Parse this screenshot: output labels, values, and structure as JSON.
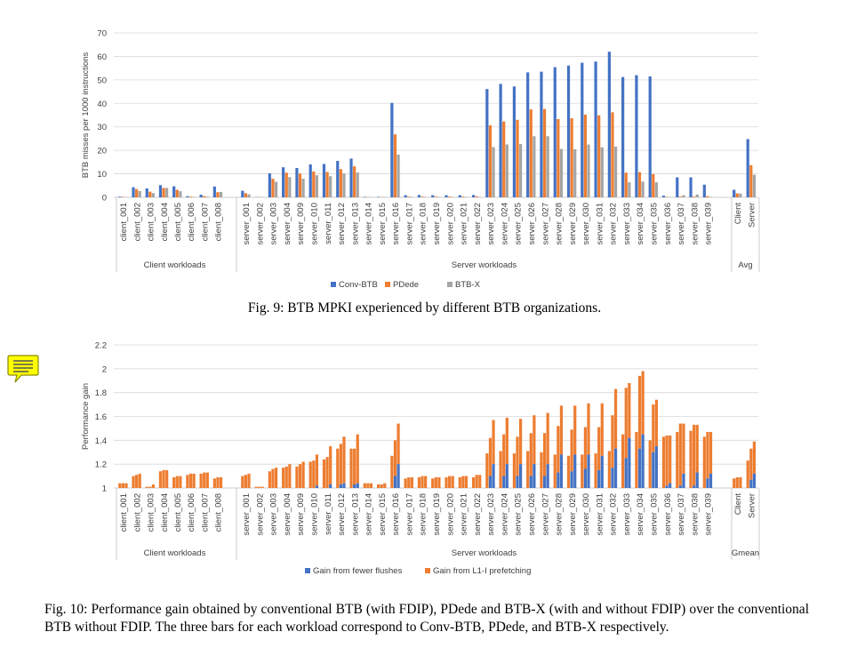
{
  "colors": {
    "conv": "#4472C4",
    "pdede": "#ED7D31",
    "btbx": "#A5A5A5",
    "grid": "#D9D9D9",
    "axis": "#BFBFBF",
    "text": "#404040",
    "note": "#FFFF00"
  },
  "icons": {
    "note": "sticky-note-icon"
  },
  "captions": {
    "fig9": "Fig. 9: BTB MPKI experienced by different BTB organizations.",
    "fig10": "Fig. 10: Performance gain obtained by conventional BTB (with FDIP), PDede and BTB-X (with and without FDIP) over the conventional BTB without FDIP. The three bars for each workload correspond to Conv-BTB, PDede, and BTB-X respectively."
  },
  "chart_data": [
    {
      "type": "bar",
      "ylabel": "BTB misses per 1000 instructions",
      "ylim": [
        0,
        70
      ],
      "yticks": [
        0,
        10,
        20,
        30,
        40,
        50,
        60,
        70
      ],
      "grid": true,
      "legend_position": "bottom",
      "categories": [
        "client_001",
        "client_002",
        "client_003",
        "client_004",
        "client_005",
        "client_006",
        "client_007",
        "client_008",
        "server_001",
        "server_002",
        "server_003",
        "server_004",
        "server_009",
        "server_010",
        "server_011",
        "server_012",
        "server_013",
        "server_014",
        "server_015",
        "server_016",
        "server_017",
        "server_018",
        "server_019",
        "server_020",
        "server_021",
        "server_022",
        "server_023",
        "server_024",
        "server_025",
        "server_026",
        "server_027",
        "server_028",
        "server_029",
        "server_030",
        "server_031",
        "server_032",
        "server_033",
        "server_034",
        "server_035",
        "server_036",
        "server_037",
        "server_038",
        "server_039",
        "Client",
        "Server"
      ],
      "groups": [
        {
          "label": "Client workloads",
          "from": 0,
          "to": 7
        },
        {
          "label": "Server workloads",
          "from": 8,
          "to": 42
        },
        {
          "label": "Avg",
          "from": 43,
          "to": 44
        }
      ],
      "series": [
        {
          "name": "Conv-BTB",
          "values": [
            0.3,
            4.3,
            3.8,
            5.2,
            4.7,
            0.5,
            1.1,
            4.6,
            2.8,
            0.1,
            10.2,
            12.8,
            12.5,
            14.0,
            14.2,
            15.5,
            16.5,
            0.2,
            0.2,
            40.2,
            0.9,
            1.0,
            0.9,
            0.9,
            0.9,
            1.0,
            46.1,
            48.3,
            47.2,
            53.2,
            53.5,
            55.4,
            56.1,
            57.3,
            57.8,
            62.0,
            51.2,
            52.0,
            51.5,
            0.7,
            8.5,
            8.5,
            5.4,
            3.2,
            24.8
          ]
        },
        {
          "name": "PDede",
          "values": [
            0.2,
            3.5,
            2.4,
            4.0,
            3.2,
            0.3,
            0.5,
            2.2,
            1.8,
            0.1,
            7.9,
            10.5,
            10.1,
            11.0,
            10.8,
            12.0,
            13.2,
            0.1,
            0.1,
            26.8,
            0.3,
            0.3,
            0.3,
            0.3,
            0.3,
            0.4,
            30.7,
            32.3,
            33.0,
            37.4,
            37.6,
            33.3,
            33.7,
            35.2,
            34.9,
            36.2,
            10.5,
            10.7,
            9.9,
            0.2,
            0.3,
            0.3,
            0.5,
            1.7,
            13.7
          ]
        },
        {
          "name": "BTB-X",
          "values": [
            0.1,
            2.7,
            1.8,
            4.0,
            2.6,
            0.2,
            0.3,
            2.3,
            1.3,
            0.1,
            6.6,
            8.6,
            7.9,
            9.4,
            9.0,
            10.2,
            10.6,
            0.1,
            0.1,
            18.2,
            0.2,
            0.2,
            0.2,
            0.2,
            0.2,
            0.2,
            21.4,
            22.5,
            22.7,
            26.0,
            26.0,
            20.6,
            20.5,
            22.5,
            21.3,
            21.6,
            6.4,
            6.7,
            6.4,
            0.1,
            0.9,
            1.2,
            0.2,
            1.6,
            9.6
          ]
        }
      ]
    },
    {
      "type": "bar",
      "stacked": true,
      "ylabel": "Performance gain",
      "ylim": [
        1,
        2.2
      ],
      "yticks": [
        1,
        1.2,
        1.4,
        1.6,
        1.8,
        2,
        2.2
      ],
      "grid": true,
      "legend_position": "bottom",
      "categories": [
        "client_001",
        "client_002",
        "client_003",
        "client_004",
        "client_005",
        "client_006",
        "client_007",
        "client_008",
        "server_001",
        "server_002",
        "server_003",
        "server_004",
        "server_009",
        "server_010",
        "server_011",
        "server_012",
        "server_013",
        "server_014",
        "server_015",
        "server_016",
        "server_017",
        "server_018",
        "server_019",
        "server_020",
        "server_021",
        "server_022",
        "server_023",
        "server_024",
        "server_025",
        "server_026",
        "server_027",
        "server_028",
        "server_029",
        "server_030",
        "server_031",
        "server_032",
        "server_033",
        "server_034",
        "server_035",
        "server_036",
        "server_037",
        "server_038",
        "server_039",
        "Client",
        "Server"
      ],
      "groups": [
        {
          "label": "Client workloads",
          "from": 0,
          "to": 7
        },
        {
          "label": "Server workloads",
          "from": 8,
          "to": 42
        },
        {
          "label": "Gmean",
          "from": 43,
          "to": 44
        }
      ],
      "bars_per_category": [
        "Conv-BTB",
        "PDede",
        "BTB-X"
      ],
      "series": [
        {
          "name": "Gain from fewer flushes",
          "values": [
            [
              1.0,
              1.0,
              1.0
            ],
            [
              1.0,
              1.0,
              1.0
            ],
            [
              1.0,
              1.0,
              1.0
            ],
            [
              1.0,
              1.0,
              1.0
            ],
            [
              1.0,
              1.0,
              1.0
            ],
            [
              1.0,
              1.0,
              1.0
            ],
            [
              1.0,
              1.0,
              1.0
            ],
            [
              1.0,
              1.0,
              1.0
            ],
            [
              1.0,
              1.0,
              1.0
            ],
            [
              1.0,
              1.0,
              1.0
            ],
            [
              1.0,
              1.0,
              1.0
            ],
            [
              1.0,
              1.0,
              1.0
            ],
            [
              1.0,
              1.0,
              1.0
            ],
            [
              1.0,
              1.0,
              1.02
            ],
            [
              1.0,
              1.0,
              1.03
            ],
            [
              1.0,
              1.03,
              1.04
            ],
            [
              1.0,
              1.03,
              1.04
            ],
            [
              1.0,
              1.0,
              1.0
            ],
            [
              1.0,
              1.0,
              1.0
            ],
            [
              1.0,
              1.1,
              1.2
            ],
            [
              1.0,
              1.0,
              1.0
            ],
            [
              1.0,
              1.0,
              1.0
            ],
            [
              1.0,
              1.0,
              1.0
            ],
            [
              1.0,
              1.0,
              1.0
            ],
            [
              1.0,
              1.0,
              1.0
            ],
            [
              1.0,
              1.0,
              1.0
            ],
            [
              1.0,
              1.1,
              1.2
            ],
            [
              1.0,
              1.1,
              1.2
            ],
            [
              1.0,
              1.1,
              1.2
            ],
            [
              1.0,
              1.1,
              1.2
            ],
            [
              1.0,
              1.1,
              1.2
            ],
            [
              1.0,
              1.13,
              1.28
            ],
            [
              1.0,
              1.14,
              1.28
            ],
            [
              1.0,
              1.16,
              1.28
            ],
            [
              1.0,
              1.15,
              1.27
            ],
            [
              1.0,
              1.17,
              1.33
            ],
            [
              1.0,
              1.25,
              1.42
            ],
            [
              1.0,
              1.33,
              1.45
            ],
            [
              1.0,
              1.3,
              1.35
            ],
            [
              1.0,
              1.02,
              1.04
            ],
            [
              1.0,
              1.02,
              1.12
            ],
            [
              1.0,
              1.02,
              1.13
            ],
            [
              1.0,
              1.08,
              1.12
            ],
            [
              1.0,
              1.0,
              1.0
            ],
            [
              1.0,
              1.07,
              1.12
            ]
          ]
        },
        {
          "name": "Gain from L1-I prefetching",
          "values": [
            [
              1.04,
              1.04,
              1.04
            ],
            [
              1.1,
              1.11,
              1.12
            ],
            [
              1.01,
              1.01,
              1.03
            ],
            [
              1.14,
              1.15,
              1.15
            ],
            [
              1.09,
              1.1,
              1.1
            ],
            [
              1.11,
              1.12,
              1.12
            ],
            [
              1.12,
              1.13,
              1.13
            ],
            [
              1.08,
              1.09,
              1.09
            ],
            [
              1.1,
              1.11,
              1.12
            ],
            [
              1.01,
              1.01,
              1.01
            ],
            [
              1.14,
              1.16,
              1.17
            ],
            [
              1.17,
              1.18,
              1.2
            ],
            [
              1.18,
              1.2,
              1.22
            ],
            [
              1.22,
              1.23,
              1.28
            ],
            [
              1.24,
              1.26,
              1.35
            ],
            [
              1.33,
              1.37,
              1.43
            ],
            [
              1.33,
              1.33,
              1.45
            ],
            [
              1.04,
              1.04,
              1.04
            ],
            [
              1.03,
              1.03,
              1.04
            ],
            [
              1.27,
              1.4,
              1.54
            ],
            [
              1.08,
              1.09,
              1.09
            ],
            [
              1.09,
              1.1,
              1.1
            ],
            [
              1.08,
              1.09,
              1.09
            ],
            [
              1.09,
              1.1,
              1.1
            ],
            [
              1.09,
              1.1,
              1.1
            ],
            [
              1.09,
              1.11,
              1.11
            ],
            [
              1.29,
              1.42,
              1.57
            ],
            [
              1.31,
              1.45,
              1.59
            ],
            [
              1.29,
              1.43,
              1.58
            ],
            [
              1.31,
              1.46,
              1.61
            ],
            [
              1.3,
              1.46,
              1.63
            ],
            [
              1.28,
              1.52,
              1.69
            ],
            [
              1.27,
              1.49,
              1.69
            ],
            [
              1.28,
              1.51,
              1.71
            ],
            [
              1.29,
              1.51,
              1.71
            ],
            [
              1.31,
              1.61,
              1.83
            ],
            [
              1.45,
              1.84,
              1.88
            ],
            [
              1.47,
              1.94,
              1.98
            ],
            [
              1.4,
              1.7,
              1.74
            ],
            [
              1.43,
              1.44,
              1.44
            ],
            [
              1.47,
              1.54,
              1.54
            ],
            [
              1.48,
              1.53,
              1.53
            ],
            [
              1.43,
              1.47,
              1.47
            ],
            [
              1.08,
              1.09,
              1.09
            ],
            [
              1.23,
              1.33,
              1.39
            ]
          ]
        }
      ]
    }
  ]
}
